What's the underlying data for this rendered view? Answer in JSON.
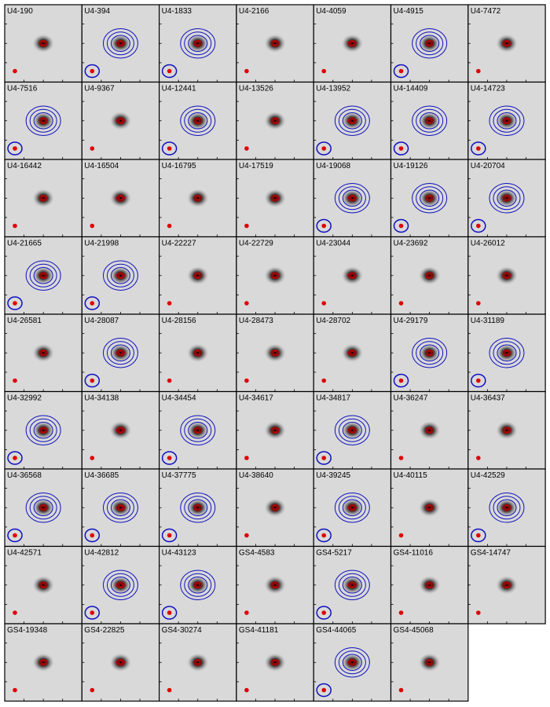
{
  "panels": [
    {
      "label": "U4-190",
      "contours": [
        "#e00000"
      ]
    },
    {
      "label": "U4-394",
      "contours": [
        "#e00000",
        "#1010c0"
      ]
    },
    {
      "label": "U4-1833",
      "contours": [
        "#e00000",
        "#1010c0"
      ]
    },
    {
      "label": "U4-2166",
      "contours": [
        "#e00000"
      ]
    },
    {
      "label": "U4-4059",
      "contours": [
        "#e00000"
      ]
    },
    {
      "label": "U4-4915",
      "contours": [
        "#e00000",
        "#1010c0"
      ]
    },
    {
      "label": "U4-7472",
      "contours": [
        "#e00000"
      ]
    },
    {
      "label": "U4-7516",
      "contours": [
        "#e00000",
        "#1010c0"
      ]
    },
    {
      "label": "U4-9367",
      "contours": [
        "#e00000"
      ]
    },
    {
      "label": "U4-12441",
      "contours": [
        "#e00000",
        "#1010c0"
      ]
    },
    {
      "label": "U4-13526",
      "contours": [
        "#e00000"
      ]
    },
    {
      "label": "U4-13952",
      "contours": [
        "#e00000",
        "#1010c0"
      ]
    },
    {
      "label": "U4-14409",
      "contours": [
        "#e00000",
        "#1010c0"
      ]
    },
    {
      "label": "U4-14723",
      "contours": [
        "#e00000",
        "#1010c0"
      ]
    },
    {
      "label": "U4-16442",
      "contours": [
        "#e00000"
      ]
    },
    {
      "label": "U4-16504",
      "contours": [
        "#e00000"
      ]
    },
    {
      "label": "U4-16795",
      "contours": [
        "#e00000"
      ]
    },
    {
      "label": "U4-17519",
      "contours": [
        "#e00000"
      ]
    },
    {
      "label": "U4-19068",
      "contours": [
        "#e00000",
        "#1010c0"
      ]
    },
    {
      "label": "U4-19126",
      "contours": [
        "#e00000",
        "#1010c0"
      ]
    },
    {
      "label": "U4-20704",
      "contours": [
        "#e00000",
        "#1010c0"
      ]
    },
    {
      "label": "U4-21665",
      "contours": [
        "#e00000",
        "#1010c0"
      ]
    },
    {
      "label": "U4-21998",
      "contours": [
        "#e00000",
        "#1010c0"
      ]
    },
    {
      "label": "U4-22227",
      "contours": [
        "#e00000"
      ]
    },
    {
      "label": "U4-22729",
      "contours": [
        "#e00000"
      ]
    },
    {
      "label": "U4-23044",
      "contours": [
        "#e00000"
      ]
    },
    {
      "label": "U4-23692",
      "contours": [
        "#e00000"
      ]
    },
    {
      "label": "U4-26012",
      "contours": [
        "#e00000"
      ]
    },
    {
      "label": "U4-26581",
      "contours": [
        "#e00000"
      ]
    },
    {
      "label": "U4-28087",
      "contours": [
        "#e00000",
        "#1010c0"
      ]
    },
    {
      "label": "U4-28156",
      "contours": [
        "#e00000"
      ]
    },
    {
      "label": "U4-28473",
      "contours": [
        "#e00000"
      ]
    },
    {
      "label": "U4-28702",
      "contours": [
        "#e00000"
      ]
    },
    {
      "label": "U4-29179",
      "contours": [
        "#e00000",
        "#1010c0"
      ]
    },
    {
      "label": "U4-31189",
      "contours": [
        "#e00000",
        "#1010c0"
      ]
    },
    {
      "label": "U4-32992",
      "contours": [
        "#e00000",
        "#1010c0"
      ]
    },
    {
      "label": "U4-34138",
      "contours": [
        "#e00000"
      ]
    },
    {
      "label": "U4-34454",
      "contours": [
        "#e00000",
        "#1010c0"
      ]
    },
    {
      "label": "U4-34617",
      "contours": [
        "#e00000"
      ]
    },
    {
      "label": "U4-34817",
      "contours": [
        "#e00000",
        "#1010c0"
      ]
    },
    {
      "label": "U4-36247",
      "contours": [
        "#e00000"
      ]
    },
    {
      "label": "U4-36437",
      "contours": [
        "#e00000"
      ]
    },
    {
      "label": "U4-36568",
      "contours": [
        "#e00000",
        "#1010c0"
      ]
    },
    {
      "label": "U4-36685",
      "contours": [
        "#e00000",
        "#1010c0"
      ]
    },
    {
      "label": "U4-37775",
      "contours": [
        "#e00000",
        "#1010c0"
      ]
    },
    {
      "label": "U4-38640",
      "contours": [
        "#e00000"
      ]
    },
    {
      "label": "U4-39245",
      "contours": [
        "#e00000",
        "#1010c0"
      ]
    },
    {
      "label": "U4-40115",
      "contours": [
        "#e00000"
      ]
    },
    {
      "label": "U4-42529",
      "contours": [
        "#e00000",
        "#1010c0"
      ]
    },
    {
      "label": "U4-42571",
      "contours": [
        "#e00000"
      ]
    },
    {
      "label": "U4-42812",
      "contours": [
        "#e00000",
        "#1010c0"
      ]
    },
    {
      "label": "U4-43123",
      "contours": [
        "#e00000",
        "#1010c0"
      ]
    },
    {
      "label": "GS4-4583",
      "contours": [
        "#e00000"
      ]
    },
    {
      "label": "GS4-5217",
      "contours": [
        "#e00000",
        "#1010c0"
      ]
    },
    {
      "label": "GS4-11016",
      "contours": [
        "#e00000"
      ]
    },
    {
      "label": "GS4-14747",
      "contours": [
        "#e00000"
      ]
    },
    {
      "label": "GS4-19348",
      "contours": [
        "#e00000"
      ]
    },
    {
      "label": "GS4-22825",
      "contours": [
        "#e00000"
      ]
    },
    {
      "label": "GS4-30274",
      "contours": [
        "#e00000"
      ]
    },
    {
      "label": "GS4-41181",
      "contours": [
        "#e00000"
      ]
    },
    {
      "label": "GS4-44065",
      "contours": [
        "#e00000",
        "#1010c0"
      ]
    },
    {
      "label": "GS4-45068",
      "contours": [
        "#e00000"
      ]
    }
  ]
}
